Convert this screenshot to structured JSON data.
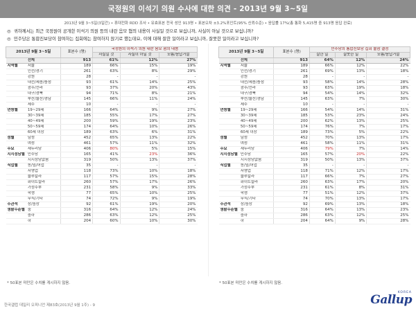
{
  "title": "국정원의 이석기 의원 수사에 대한 의견 - 2013년 9월 3~5일",
  "subtitle": "2013년 9월 3~5일(3일간) • 휴대전화 RDD 조사 • 유효표본 전국 성인 913명 • 표본오차 ±3.2%포인트(95% 신뢰수준) • 응답률 17%(총 통화 5,415명 중 913명 응답 완료)",
  "questions": [
    {
      "mark": "◎",
      "text": "귀하께서는 최근 국정원이 공개한 이석기 의원 등의 내란 음모 혐의 내용이 사실일 것으로 보십니까, 사실이 아닐 것으로 보십니까?"
    },
    {
      "mark": "◎",
      "text": "민주당은 통합진보당이 참여하는 집회에는 참여하지 않기로 했는데요, 이에 대해 잘한 일이라고 보십니까, 잘못한 일이라고 보십니까?"
    }
  ],
  "tables": [
    {
      "period": "2013년 9월 3~5일",
      "count_header": "표본수 (명)",
      "question_header": "국정원의 이석기 의원 내란 음모 혐의 내용",
      "options": [
        "사실일 것",
        "사실이 아닐 것",
        "모름/응답거절"
      ],
      "rows": [
        {
          "g": "",
          "l": "전체",
          "c": "913",
          "v": [
            "61%",
            "12%",
            "27%"
          ],
          "total": true
        },
        {
          "g": "지역별",
          "l": "서울",
          "c": "189",
          "v": [
            "66%",
            "15%",
            "19%"
          ]
        },
        {
          "g": "",
          "l": "인천/경기",
          "c": "261",
          "v": [
            "63%",
            "8%",
            "29%"
          ]
        },
        {
          "g": "",
          "l": "강원",
          "c": "28",
          "v": [
            "-",
            "-",
            "-"
          ]
        },
        {
          "g": "",
          "l": "대전/세종/충청",
          "c": "93",
          "v": [
            "61%",
            "14%",
            "25%"
          ]
        },
        {
          "g": "",
          "l": "광주/전라",
          "c": "93",
          "v": [
            "37%",
            "20%",
            "43%"
          ]
        },
        {
          "g": "",
          "l": "대구/경북",
          "c": "94",
          "v": [
            "71%",
            "8%",
            "21%"
          ]
        },
        {
          "g": "",
          "l": "부산/울산/경남",
          "c": "145",
          "v": [
            "66%",
            "11%",
            "24%"
          ]
        },
        {
          "g": "",
          "l": "제주",
          "c": "10",
          "v": [
            "-",
            "-",
            "-"
          ]
        },
        {
          "g": "연령별",
          "l": "19~29세",
          "c": "166",
          "v": [
            "64%",
            "9%",
            "27%"
          ],
          "gs": true
        },
        {
          "g": "",
          "l": "30~39세",
          "c": "185",
          "v": [
            "55%",
            "17%",
            "27%"
          ]
        },
        {
          "g": "",
          "l": "40~49세",
          "c": "200",
          "v": [
            "59%",
            "19%",
            "23%"
          ]
        },
        {
          "g": "",
          "l": "50~59세",
          "c": "174",
          "v": [
            "64%",
            "10%",
            "26%"
          ]
        },
        {
          "g": "",
          "l": "60세 이상",
          "c": "189",
          "v": [
            "63%",
            "6%",
            "31%"
          ]
        },
        {
          "g": "성별",
          "l": "남성",
          "c": "452",
          "v": [
            "65%",
            "13%",
            "22%"
          ],
          "gs": true
        },
        {
          "g": "",
          "l": "여성",
          "c": "461",
          "v": [
            "57%",
            "11%",
            "32%"
          ]
        },
        {
          "g": "주요",
          "l": "새누리당",
          "c": "406",
          "v": [
            "80%",
            "5%",
            "15%"
          ],
          "gs": true,
          "red": 0
        },
        {
          "g": "지지정당별",
          "l": "민주당",
          "c": "165",
          "v": [
            "41%",
            "23%",
            "36%"
          ],
          "red": 1
        },
        {
          "g": "",
          "l": "지지정당없음",
          "c": "319",
          "v": [
            "50%",
            "13%",
            "37%"
          ]
        },
        {
          "g": "직업별",
          "l": "농/임/어업",
          "c": "35",
          "v": [
            "-",
            "-",
            "-"
          ],
          "gs": true
        },
        {
          "g": "",
          "l": "자영업",
          "c": "118",
          "v": [
            "73%",
            "10%",
            "18%"
          ]
        },
        {
          "g": "",
          "l": "블루칼라",
          "c": "117",
          "v": [
            "57%",
            "15%",
            "28%"
          ]
        },
        {
          "g": "",
          "l": "화이트칼라",
          "c": "260",
          "v": [
            "57%",
            "17%",
            "26%"
          ]
        },
        {
          "g": "",
          "l": "가정주부",
          "c": "231",
          "v": [
            "58%",
            "9%",
            "33%"
          ]
        },
        {
          "g": "",
          "l": "학생",
          "c": "77",
          "v": [
            "65%",
            "10%",
            "25%"
          ]
        },
        {
          "g": "",
          "l": "무직/기타",
          "c": "74",
          "v": [
            "72%",
            "9%",
            "19%"
          ]
        },
        {
          "g": "주관적",
          "l": "상/중상",
          "c": "92",
          "v": [
            "61%",
            "19%",
            "20%"
          ],
          "gs": true
        },
        {
          "g": "생활수준별",
          "l": "중",
          "c": "316",
          "v": [
            "64%",
            "12%",
            "24%"
          ]
        },
        {
          "g": "",
          "l": "중하",
          "c": "286",
          "v": [
            "63%",
            "12%",
            "25%"
          ]
        },
        {
          "g": "",
          "l": "하",
          "c": "204",
          "v": [
            "60%",
            "10%",
            "30%"
          ]
        }
      ]
    },
    {
      "period": "2013년 9월 3~5일",
      "count_header": "표본수 (명)",
      "question_header": "민주당의 통합진보당 집회 불참 결정",
      "options": [
        "잘한 일",
        "잘못한 일",
        "모름/응답거절"
      ],
      "rows": [
        {
          "g": "",
          "l": "전체",
          "c": "913",
          "v": [
            "64%",
            "12%",
            "24%"
          ],
          "total": true
        },
        {
          "g": "지역별",
          "l": "서울",
          "c": "189",
          "v": [
            "66%",
            "12%",
            "22%"
          ]
        },
        {
          "g": "",
          "l": "인천/경기",
          "c": "261",
          "v": [
            "69%",
            "13%",
            "18%"
          ]
        },
        {
          "g": "",
          "l": "강원",
          "c": "28",
          "v": [
            "-",
            "-",
            "-"
          ]
        },
        {
          "g": "",
          "l": "대전/세종/충청",
          "c": "93",
          "v": [
            "58%",
            "14%",
            "28%"
          ]
        },
        {
          "g": "",
          "l": "광주/전라",
          "c": "93",
          "v": [
            "63%",
            "19%",
            "18%"
          ]
        },
        {
          "g": "",
          "l": "대구/경북",
          "c": "94",
          "v": [
            "54%",
            "14%",
            "32%"
          ]
        },
        {
          "g": "",
          "l": "부산/울산/경남",
          "c": "145",
          "v": [
            "63%",
            "7%",
            "30%"
          ]
        },
        {
          "g": "",
          "l": "제주",
          "c": "10",
          "v": [
            "-",
            "-",
            "-"
          ]
        },
        {
          "g": "연령별",
          "l": "19~29세",
          "c": "166",
          "v": [
            "54%",
            "14%",
            "31%"
          ],
          "gs": true
        },
        {
          "g": "",
          "l": "30~39세",
          "c": "185",
          "v": [
            "53%",
            "23%",
            "24%"
          ]
        },
        {
          "g": "",
          "l": "40~49세",
          "c": "200",
          "v": [
            "62%",
            "13%",
            "25%"
          ]
        },
        {
          "g": "",
          "l": "50~59세",
          "c": "174",
          "v": [
            "76%",
            "7%",
            "17%"
          ]
        },
        {
          "g": "",
          "l": "60세 이상",
          "c": "189",
          "v": [
            "73%",
            "5%",
            "22%"
          ]
        },
        {
          "g": "성별",
          "l": "남성",
          "c": "452",
          "v": [
            "70%",
            "13%",
            "17%"
          ],
          "gs": true
        },
        {
          "g": "",
          "l": "여성",
          "c": "461",
          "v": [
            "58%",
            "11%",
            "31%"
          ]
        },
        {
          "g": "주요",
          "l": "새누리당",
          "c": "406",
          "v": [
            "79%",
            "7%",
            "14%"
          ],
          "gs": true,
          "red": 0
        },
        {
          "g": "지지정당별",
          "l": "민주당",
          "c": "165",
          "v": [
            "57%",
            "20%",
            "22%"
          ],
          "red": 1
        },
        {
          "g": "",
          "l": "지지정당없음",
          "c": "319",
          "v": [
            "50%",
            "13%",
            "37%"
          ]
        },
        {
          "g": "직업별",
          "l": "농/임/어업",
          "c": "35",
          "v": [
            "-",
            "-",
            "-"
          ],
          "gs": true
        },
        {
          "g": "",
          "l": "자영업",
          "c": "118",
          "v": [
            "71%",
            "12%",
            "17%"
          ]
        },
        {
          "g": "",
          "l": "블루칼라",
          "c": "117",
          "v": [
            "66%",
            "7%",
            "27%"
          ]
        },
        {
          "g": "",
          "l": "화이트칼라",
          "c": "260",
          "v": [
            "63%",
            "17%",
            "20%"
          ]
        },
        {
          "g": "",
          "l": "가정주부",
          "c": "231",
          "v": [
            "61%",
            "8%",
            "31%"
          ]
        },
        {
          "g": "",
          "l": "학생",
          "c": "77",
          "v": [
            "51%",
            "12%",
            "37%"
          ]
        },
        {
          "g": "",
          "l": "무직/기타",
          "c": "74",
          "v": [
            "70%",
            "13%",
            "17%"
          ]
        },
        {
          "g": "주관적",
          "l": "상/중상",
          "c": "92",
          "v": [
            "69%",
            "13%",
            "18%"
          ],
          "gs": true
        },
        {
          "g": "생활수준별",
          "l": "중",
          "c": "316",
          "v": [
            "64%",
            "13%",
            "23%"
          ]
        },
        {
          "g": "",
          "l": "중하",
          "c": "286",
          "v": [
            "63%",
            "12%",
            "25%"
          ]
        },
        {
          "g": "",
          "l": "하",
          "c": "204",
          "v": [
            "64%",
            "9%",
            "28%"
          ]
        }
      ]
    }
  ],
  "notes": [
    "* 50표본 미만은 수치를 게시하지 않음.",
    "* 50표본 미만은 수치를 게시하지 않음."
  ],
  "footer": "한국갤럽 데일리 오피니언 제83호(2013년 9월 1주) - 9",
  "logo": {
    "top": "KOREA",
    "main": "Gallup"
  },
  "colors": {
    "title_bar": "#8d8d8d",
    "highlight": "#c62828",
    "logo": "#24408e"
  }
}
